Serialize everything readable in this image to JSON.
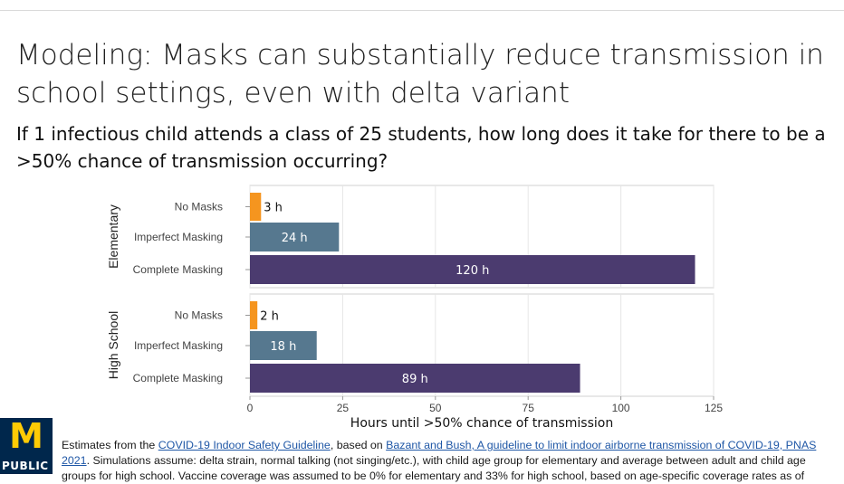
{
  "slide": {
    "title": "Modeling: Masks can substantially reduce transmission in school settings, even with delta variant",
    "question": "If 1 infectious child attends a class of 25 students, how long does it take for there to be a >50% chance of transmission occurring?"
  },
  "footer": {
    "prefix": "Estimates from the ",
    "link1": "COVID-19 Indoor Safety Guideline",
    "mid": ", based on ",
    "link2": "Bazant and Bush, A guideline to limit indoor airborne transmission of COVID-19, PNAS 2021",
    "rest": ". Simulations assume: delta strain, normal talking (not singing/etc.), with child age group for elementary and average between adult and child age groups for high school. Vaccine coverage was assumed to be 0% for elementary and 33% for high school, based on age-specific coverage rates as of"
  },
  "logo": {
    "letter": "M",
    "word": "PUBLIC"
  },
  "chart_data": {
    "type": "bar",
    "orientation": "horizontal",
    "xlabel": "Hours until >50% chance of transmission",
    "xlim": [
      0,
      125
    ],
    "xticks": [
      0,
      25,
      50,
      75,
      100,
      125
    ],
    "grid": true,
    "colors": {
      "No Masks": "#f5951f",
      "Imperfect Masking": "#56788f",
      "Complete Masking": "#4b3b6f"
    },
    "panels": [
      {
        "name": "Elementary",
        "bars": [
          {
            "category": "No Masks",
            "value": 3,
            "label": "3 h"
          },
          {
            "category": "Imperfect Masking",
            "value": 24,
            "label": "24 h"
          },
          {
            "category": "Complete Masking",
            "value": 120,
            "label": "120 h"
          }
        ]
      },
      {
        "name": "High School",
        "bars": [
          {
            "category": "No Masks",
            "value": 2,
            "label": "2 h"
          },
          {
            "category": "Imperfect Masking",
            "value": 18,
            "label": "18 h"
          },
          {
            "category": "Complete Masking",
            "value": 89,
            "label": "89 h"
          }
        ]
      }
    ]
  }
}
